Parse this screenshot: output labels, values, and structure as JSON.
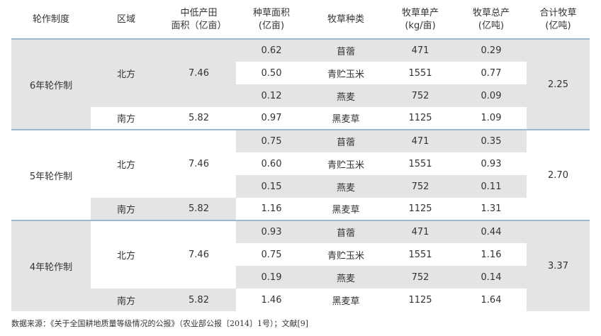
{
  "headers": [
    {
      "line1": "轮作制度",
      "line2": ""
    },
    {
      "line1": "区域",
      "line2": ""
    },
    {
      "line1": "中低产田",
      "line2": "面积（亿亩）"
    },
    {
      "line1": "种草面积",
      "line2": "(亿亩)"
    },
    {
      "line1": "牧草种类",
      "line2": ""
    },
    {
      "line1": "牧草单产",
      "line2": "(kg/亩)"
    },
    {
      "line1": "牧草总产",
      "line2": "(亿吨)"
    },
    {
      "line1": "合计牧草",
      "line2": "(亿吨)"
    }
  ],
  "groups": [
    {
      "system": "6年轮作制",
      "total": "2.25",
      "north_label": "北方",
      "north_area": "7.46",
      "north_rows": [
        {
          "grass_area": "0.62",
          "type": "苜蓿",
          "yield": "471",
          "output": "0.29"
        },
        {
          "grass_area": "0.50",
          "type": "青贮玉米",
          "yield": "1551",
          "output": "0.77"
        },
        {
          "grass_area": "0.12",
          "type": "燕麦",
          "yield": "752",
          "output": "0.09"
        }
      ],
      "south": {
        "label": "南方",
        "area": "5.82",
        "grass_area": "0.97",
        "type": "黑麦草",
        "yield": "1125",
        "output": "1.09"
      }
    },
    {
      "system": "5年轮作制",
      "total": "2.70",
      "north_label": "北方",
      "north_area": "7.46",
      "north_rows": [
        {
          "grass_area": "0.75",
          "type": "苜蓿",
          "yield": "471",
          "output": "0.35"
        },
        {
          "grass_area": "0.60",
          "type": "青贮玉米",
          "yield": "1551",
          "output": "0.93"
        },
        {
          "grass_area": "0.15",
          "type": "燕麦",
          "yield": "752",
          "output": "0.11"
        }
      ],
      "south": {
        "label": "南方",
        "area": "5.82",
        "grass_area": "1.16",
        "type": "黑麦草",
        "yield": "1125",
        "output": "1.31"
      }
    },
    {
      "system": "4年轮作制",
      "total": "3.37",
      "north_label": "北方",
      "north_area": "7.46",
      "north_rows": [
        {
          "grass_area": "0.93",
          "type": "苜蓿",
          "yield": "471",
          "output": "0.44"
        },
        {
          "grass_area": "0.75",
          "type": "青贮玉米",
          "yield": "1551",
          "output": "1.16"
        },
        {
          "grass_area": "0.19",
          "type": "燕麦",
          "yield": "752",
          "output": "0.14"
        }
      ],
      "south": {
        "label": "南方",
        "area": "5.82",
        "grass_area": "1.46",
        "type": "黑麦草",
        "yield": "1125",
        "output": "1.64"
      }
    }
  ],
  "footnote": "数据来源：《关于全国耕地质量等级情况的公报》（农业部公报〔2014〕1号）；文献[9]"
}
